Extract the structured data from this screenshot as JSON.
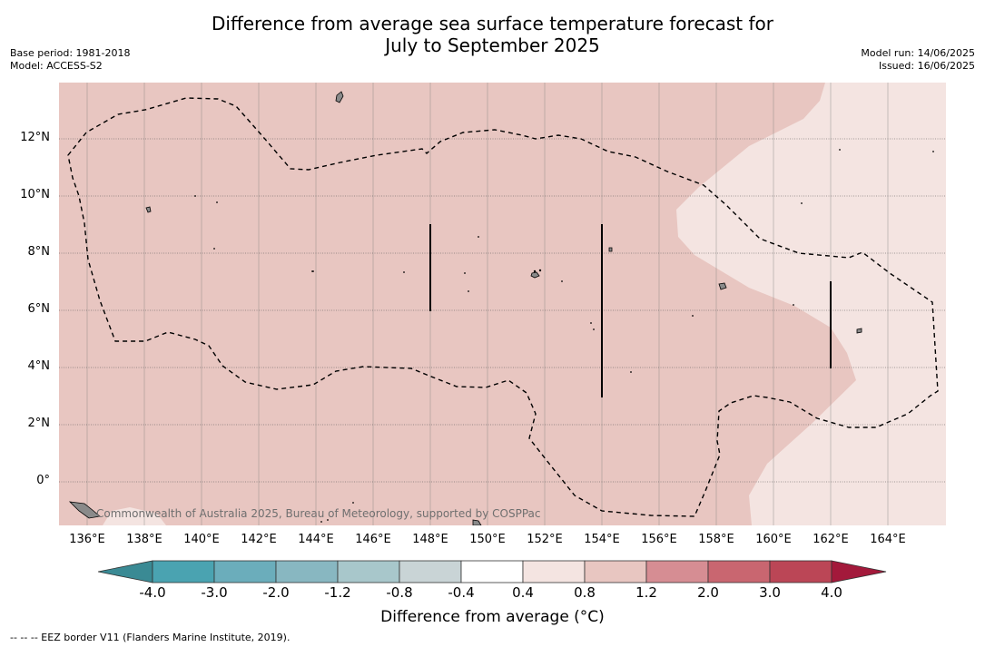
{
  "title_line1": "Difference from average sea surface temperature forecast for",
  "title_line2": "July to September 2025",
  "meta_left": {
    "base_period": "Base period: 1981-2018",
    "model": "Model: ACCESS-S2"
  },
  "meta_right": {
    "model_run": "Model run: 14/06/2025",
    "issued": "Issued: 16/06/2025"
  },
  "lat_ticks": [
    "12°N",
    "10°N",
    "8°N",
    "6°N",
    "4°N",
    "2°N",
    "0°"
  ],
  "lon_ticks": [
    "136°E",
    "138°E",
    "140°E",
    "142°E",
    "144°E",
    "146°E",
    "148°E",
    "150°E",
    "152°E",
    "154°E",
    "156°E",
    "158°E",
    "160°E",
    "162°E",
    "164°E"
  ],
  "watermark": "Commonwealth of Australia 2025, Bureau of Meteorology, supported by COSPPac",
  "colorbar": {
    "title": "Difference from average (°C)",
    "tick_labels": [
      "-4.0",
      "-3.0",
      "-2.0",
      "-1.2",
      "-0.8",
      "-0.4",
      "0.4",
      "0.8",
      "1.2",
      "2.0",
      "3.0",
      "4.0"
    ],
    "colors": [
      "#3a8a94",
      "#4aa3b1",
      "#6badbb",
      "#88b7c1",
      "#a8c7cb",
      "#c9d4d6",
      "#ffffff",
      "#f4e4e1",
      "#e8c6c1",
      "#d68d93",
      "#c96670",
      "#bb4656",
      "#a3193b"
    ]
  },
  "map_colors": {
    "main_fill": "#e8c6c1",
    "light_fill": "#f4e4e1"
  },
  "footer": "--  --  -- EEZ border V11 (Flanders Marine Institute, 2019)."
}
